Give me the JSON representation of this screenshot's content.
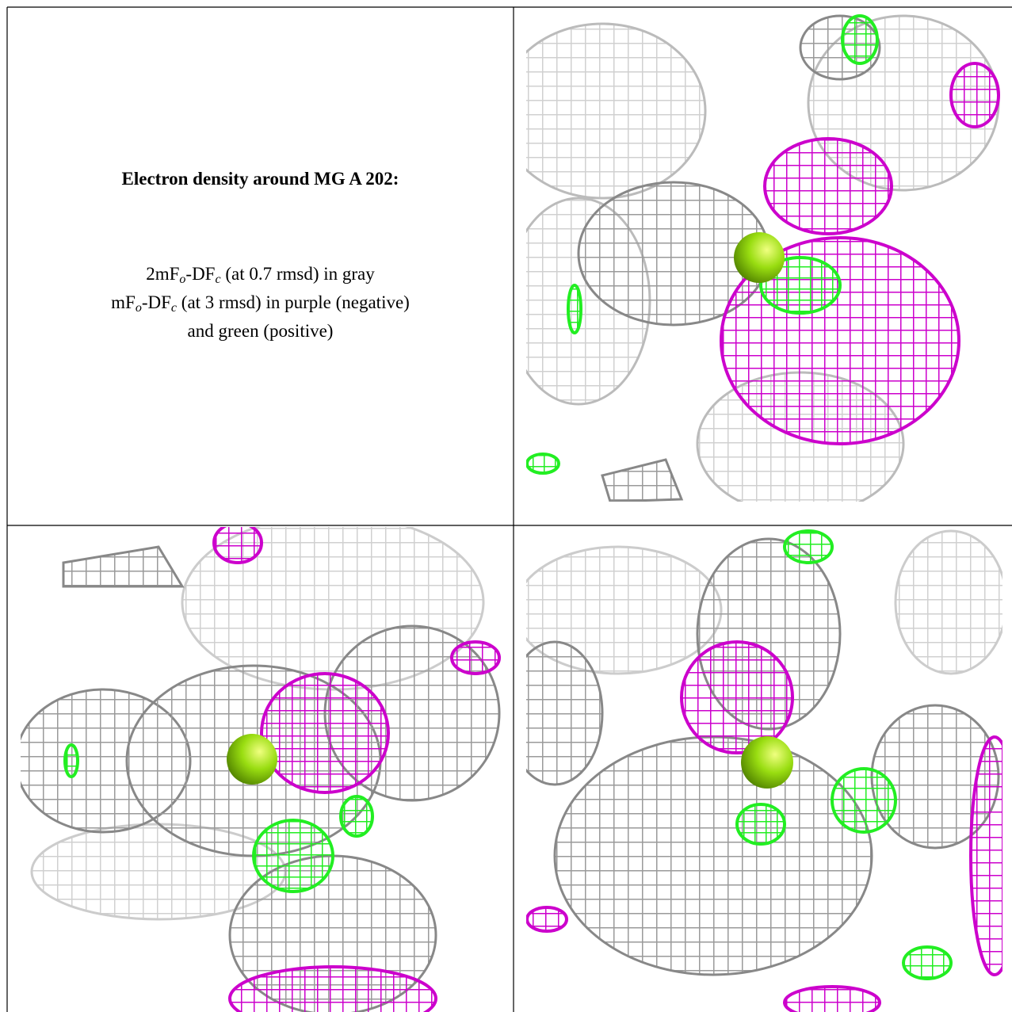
{
  "panel": {
    "title": "Electron density around MG A 202:",
    "lines": [
      [
        "2mF",
        "o",
        "-DF",
        "c",
        " (at 0.7 rmsd) in gray"
      ],
      [
        "mF",
        "o",
        "-DF",
        "c",
        " (at 3 rmsd) in purple (negative)"
      ],
      [
        "and green (positive)"
      ]
    ]
  }
}
